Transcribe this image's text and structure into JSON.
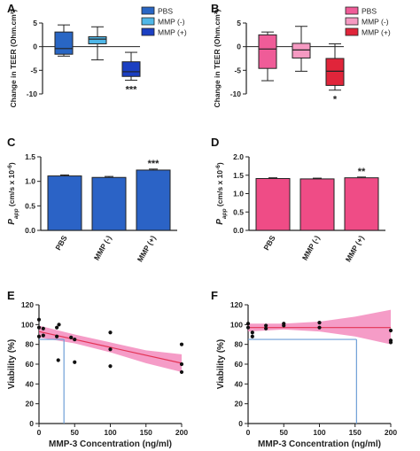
{
  "colors": {
    "pbs_blue": "#2966c4",
    "mmp_minus_blue": "#4fb7e8",
    "mmp_plus_blue": "#1b3fc2",
    "pbs_pink": "#ef5c98",
    "mmp_minus_pink": "#f59ac2",
    "mmp_plus_pink": "#e0253a",
    "bar_blue": "#2b63c6",
    "bar_pink": "#ef4c86",
    "fit_line": "#e33355",
    "ci_band": "#f27bb4",
    "ref_line": "#6e9ed6"
  },
  "chart_data": [
    {
      "panel": "A",
      "type": "box",
      "ylabel": "Change in TEER (Ohm.cm²)",
      "ylim": [
        -10,
        5
      ],
      "yticks": [
        "5",
        "0",
        "-5",
        "-10"
      ],
      "legend": [
        "PBS",
        "MMP (-)",
        "MMP (+)"
      ],
      "legend_position": "top-right",
      "boxes": [
        {
          "name": "PBS",
          "min": -2,
          "q1": -1.6,
          "median": -0.4,
          "q3": 3.1,
          "max": 4.6,
          "color": "#2966c4"
        },
        {
          "name": "MMP (-)",
          "min": -2.8,
          "q1": 0.6,
          "median": 1.6,
          "q3": 2.1,
          "max": 4.2,
          "color": "#4fb7e8"
        },
        {
          "name": "MMP (+)",
          "min": -7.1,
          "q1": -6.3,
          "median": -5.3,
          "q3": -3.2,
          "max": -1.2,
          "color": "#1b3fc2"
        }
      ],
      "annotations": [
        {
          "box": "MMP (+)",
          "text": "***"
        }
      ]
    },
    {
      "panel": "B",
      "type": "box",
      "ylabel": "Change in TEER (Ohm.cm²)",
      "ylim": [
        -10,
        5
      ],
      "yticks": [
        "5",
        "0",
        "-5",
        "-10"
      ],
      "legend": [
        "PBS",
        "MMP (-)",
        "MMP (+)"
      ],
      "legend_position": "top-right",
      "boxes": [
        {
          "name": "PBS",
          "min": -7.2,
          "q1": -4.6,
          "median": -0.5,
          "q3": 2.5,
          "max": 3.1,
          "color": "#ef5c98"
        },
        {
          "name": "MMP (-)",
          "min": -5.2,
          "q1": -2.4,
          "median": -0.7,
          "q3": 0.7,
          "max": 4.3,
          "color": "#f59ac2"
        },
        {
          "name": "MMP (+)",
          "min": -9.2,
          "q1": -8.2,
          "median": -5.2,
          "q3": -2.5,
          "max": 0.6,
          "color": "#e0253a"
        }
      ],
      "annotations": [
        {
          "box": "MMP (+)",
          "text": "*"
        }
      ]
    },
    {
      "panel": "C",
      "type": "bar",
      "ylabel_main": "P",
      "ylabel_sub": "app",
      "ylabel_rest": " (cm/s x 10",
      "ylabel_sup": "-6",
      "ylabel_end": ")",
      "categories": [
        "PBS",
        "MMP (-)",
        "MMP (+)"
      ],
      "values": [
        1.11,
        1.08,
        1.23
      ],
      "errors": [
        0.02,
        0.02,
        0.02
      ],
      "ylim": [
        0,
        1.5
      ],
      "yticks": [
        "0.0",
        "0.5",
        "1.0",
        "1.5"
      ],
      "color": "#2b63c6",
      "annotations": [
        {
          "category": "MMP (+)",
          "text": "***"
        }
      ]
    },
    {
      "panel": "D",
      "type": "bar",
      "ylabel_main": "P",
      "ylabel_sub": "app",
      "ylabel_rest": " (cm/s x 10",
      "ylabel_sup": "-6",
      "ylabel_end": ")",
      "categories": [
        "PBS",
        "MMP (-)",
        "MMP (+)"
      ],
      "values": [
        1.41,
        1.4,
        1.43
      ],
      "errors": [
        0.02,
        0.02,
        0.02
      ],
      "ylim": [
        0,
        2.0
      ],
      "yticks": [
        "0.0",
        "0.5",
        "1.0",
        "1.5",
        "2.0"
      ],
      "color": "#ef4c86",
      "annotations": [
        {
          "category": "MMP (+)",
          "text": "**"
        }
      ]
    },
    {
      "panel": "E",
      "type": "scatter",
      "xlabel": "MMP-3 Concentration (ng/ml)",
      "ylabel": "Viability (%)",
      "xlim": [
        0,
        200
      ],
      "ylim": [
        0,
        120
      ],
      "xticks": [
        "0",
        "50",
        "100",
        "150",
        "200"
      ],
      "yticks": [
        "0",
        "20",
        "40",
        "60",
        "80",
        "100",
        "120"
      ],
      "points": [
        [
          0,
          105
        ],
        [
          0,
          97
        ],
        [
          0,
          88
        ],
        [
          6,
          96
        ],
        [
          6,
          89
        ],
        [
          25,
          97
        ],
        [
          25,
          88
        ],
        [
          27,
          64
        ],
        [
          28,
          100
        ],
        [
          45,
          87
        ],
        [
          50,
          85
        ],
        [
          50,
          62
        ],
        [
          100,
          92
        ],
        [
          100,
          75
        ],
        [
          100,
          58
        ],
        [
          200,
          80
        ],
        [
          200,
          60
        ],
        [
          200,
          52
        ]
      ],
      "fit": {
        "x": [
          0,
          200
        ],
        "y": [
          93,
          61
        ]
      },
      "ci_upper": [
        [
          0,
          99
        ],
        [
          50,
          90
        ],
        [
          100,
          82
        ],
        [
          150,
          74
        ],
        [
          200,
          70
        ]
      ],
      "ci_lower": [
        [
          0,
          87
        ],
        [
          50,
          81
        ],
        [
          100,
          72
        ],
        [
          150,
          61
        ],
        [
          200,
          52
        ]
      ],
      "reference": {
        "y": 85,
        "x": 35
      }
    },
    {
      "panel": "F",
      "type": "scatter",
      "xlabel": "MMP-3 Concentration (ng/ml)",
      "ylabel": "Viability (%)",
      "xlim": [
        0,
        200
      ],
      "ylim": [
        0,
        120
      ],
      "xticks": [
        "0",
        "50",
        "100",
        "150",
        "200"
      ],
      "yticks": [
        "0",
        "20",
        "40",
        "60",
        "80",
        "100",
        "120"
      ],
      "points": [
        [
          0,
          101
        ],
        [
          0,
          97
        ],
        [
          6,
          92
        ],
        [
          6,
          88
        ],
        [
          25,
          99
        ],
        [
          25,
          96
        ],
        [
          50,
          101
        ],
        [
          50,
          99
        ],
        [
          100,
          102
        ],
        [
          100,
          97
        ],
        [
          200,
          94
        ],
        [
          200,
          84
        ],
        [
          200,
          82
        ]
      ],
      "fit": {
        "x": [
          0,
          200
        ],
        "y": [
          97,
          97
        ]
      },
      "ci_upper": [
        [
          0,
          101
        ],
        [
          50,
          101
        ],
        [
          100,
          103
        ],
        [
          150,
          108
        ],
        [
          200,
          115
        ]
      ],
      "ci_lower": [
        [
          0,
          93
        ],
        [
          50,
          95
        ],
        [
          100,
          93
        ],
        [
          150,
          88
        ],
        [
          200,
          80
        ]
      ],
      "reference": {
        "y": 85,
        "x": 152
      }
    }
  ]
}
